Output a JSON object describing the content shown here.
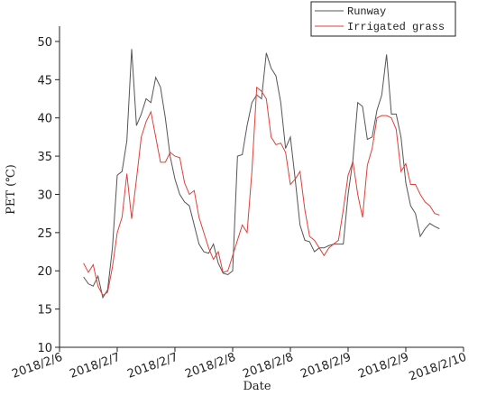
{
  "chart_data": {
    "type": "line",
    "x_label": "Date",
    "y_label": "PET (℃)",
    "xlim": [
      0,
      84
    ],
    "xticks": [
      {
        "value": 0,
        "label": "2018/2/6"
      },
      {
        "value": 12,
        "label": "2018/2/7"
      },
      {
        "value": 24,
        "label": "2018/2/7"
      },
      {
        "value": 36,
        "label": "2018/2/8"
      },
      {
        "value": 48,
        "label": "2018/2/8"
      },
      {
        "value": 60,
        "label": "2018/2/9"
      },
      {
        "value": 72,
        "label": "2018/2/9"
      },
      {
        "value": 84,
        "label": "2018/2/10"
      }
    ],
    "ylim": [
      10,
      52
    ],
    "yticks": [
      10,
      15,
      20,
      25,
      30,
      35,
      40,
      45,
      50
    ],
    "legend": "top-right",
    "x": [
      5,
      6,
      7,
      8,
      9,
      10,
      11,
      12,
      13,
      14,
      15,
      16,
      17,
      18,
      19,
      20,
      21,
      22,
      23,
      24,
      25,
      26,
      27,
      28,
      29,
      30,
      31,
      32,
      33,
      34,
      35,
      36,
      37,
      38,
      39,
      40,
      41,
      42,
      43,
      44,
      45,
      46,
      47,
      48,
      49,
      50,
      51,
      52,
      53,
      54,
      55,
      56,
      57,
      58,
      59,
      60,
      61,
      62,
      63,
      64,
      65,
      66,
      67,
      68,
      69,
      70,
      71,
      72,
      73,
      74,
      75,
      76,
      77,
      78,
      79
    ],
    "series": [
      {
        "name": "Runway",
        "color": "#555555",
        "values": [
          19.2,
          18.3,
          18,
          19.3,
          16.5,
          17.5,
          23,
          32.5,
          33,
          37,
          49,
          39,
          40.5,
          42.5,
          42,
          45.3,
          44,
          40,
          35,
          32,
          30,
          29,
          28.5,
          26,
          23.5,
          22.5,
          22.3,
          23.5,
          21,
          19.7,
          19.5,
          20,
          35,
          35.2,
          39,
          42,
          43,
          42.5,
          48.5,
          46.5,
          45.5,
          42,
          36,
          37.5,
          32,
          26,
          24,
          23.8,
          22.5,
          23,
          23,
          23.3,
          23.5,
          23.5,
          23.5,
          30,
          34.5,
          42,
          41.5,
          37.2,
          37.5,
          41,
          43,
          48.3,
          40.5,
          40.5,
          37.5,
          31.5,
          28.5,
          27.5,
          24.5,
          25.5,
          26.2,
          25.8,
          25.5
        ]
      },
      {
        "name": "Irrigated grass",
        "color": "#e0403a",
        "values": [
          21,
          19.8,
          20.8,
          18,
          16.8,
          17.2,
          20.5,
          25,
          27,
          32.7,
          26.8,
          32,
          37.5,
          39.5,
          40.8,
          37.5,
          34.2,
          34.2,
          35.5,
          35,
          34.8,
          31.5,
          30,
          30.5,
          27,
          25,
          23,
          21.5,
          22.5,
          19.8,
          20,
          22,
          24,
          26,
          25,
          33,
          44,
          43.5,
          42.5,
          37.5,
          36.5,
          36.7,
          35.5,
          31.3,
          32,
          33,
          28,
          24.5,
          24,
          23,
          22,
          23,
          23.5,
          24,
          28,
          32.5,
          34.3,
          30,
          27,
          33.8,
          36,
          40,
          40.3,
          40.3,
          40,
          38.5,
          33,
          34,
          31.3,
          31.3,
          30,
          29,
          28.5,
          27.5,
          27.3
        ]
      }
    ]
  }
}
